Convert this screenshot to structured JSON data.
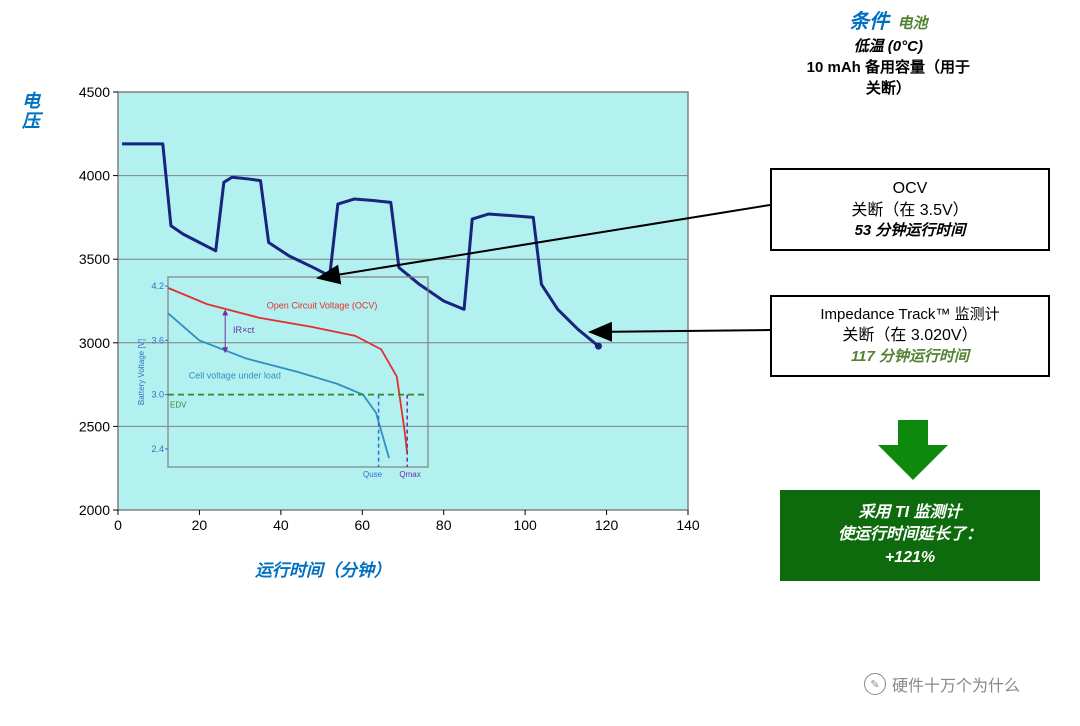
{
  "conditions": {
    "title": "条件",
    "sub": "电池",
    "line2": "低温 (0°C)",
    "line3a": "10 mAh 备用容量（用于",
    "line3b": "关断）"
  },
  "ylabel_a": "电",
  "ylabel_b": "压",
  "xlabel": "运行时间（分钟）",
  "main_chart": {
    "type": "line",
    "plot_bg": "#b3f0f0",
    "border_color": "#808080",
    "grid_color": "#808080",
    "line_color": "#1a237e",
    "line_width": 3,
    "xlim": [
      0,
      140
    ],
    "ylim": [
      2000,
      4500
    ],
    "xticks": [
      0,
      20,
      40,
      60,
      80,
      100,
      120,
      140
    ],
    "yticks": [
      2000,
      2500,
      3000,
      3500,
      4000,
      4500
    ],
    "yticks_grid": [
      2500,
      3000,
      3500,
      4000,
      4500
    ],
    "tick_fontsize": 14,
    "tick_color": "#000000",
    "series": [
      {
        "x": 1,
        "y": 4190
      },
      {
        "x": 11,
        "y": 4190
      },
      {
        "x": 13,
        "y": 3700
      },
      {
        "x": 16,
        "y": 3650
      },
      {
        "x": 20,
        "y": 3600
      },
      {
        "x": 24,
        "y": 3550
      },
      {
        "x": 26,
        "y": 3960
      },
      {
        "x": 28,
        "y": 3990
      },
      {
        "x": 32,
        "y": 3980
      },
      {
        "x": 35,
        "y": 3970
      },
      {
        "x": 37,
        "y": 3600
      },
      {
        "x": 42,
        "y": 3520
      },
      {
        "x": 48,
        "y": 3450
      },
      {
        "x": 52,
        "y": 3400
      },
      {
        "x": 54,
        "y": 3830
      },
      {
        "x": 58,
        "y": 3860
      },
      {
        "x": 63,
        "y": 3850
      },
      {
        "x": 67,
        "y": 3840
      },
      {
        "x": 69,
        "y": 3450
      },
      {
        "x": 74,
        "y": 3350
      },
      {
        "x": 80,
        "y": 3250
      },
      {
        "x": 85,
        "y": 3200
      },
      {
        "x": 87,
        "y": 3740
      },
      {
        "x": 91,
        "y": 3770
      },
      {
        "x": 97,
        "y": 3760
      },
      {
        "x": 102,
        "y": 3750
      },
      {
        "x": 104,
        "y": 3350
      },
      {
        "x": 108,
        "y": 3200
      },
      {
        "x": 113,
        "y": 3080
      },
      {
        "x": 118,
        "y": 2980
      }
    ]
  },
  "inset_chart": {
    "border_color": "#808080",
    "bg": "#b3f0f0",
    "ocv_color": "#e03030",
    "load_color": "#3090c0",
    "edv_color": "#2e8b2e",
    "dash_blue": "#3070d0",
    "dash_purple": "#7030a0",
    "ylabel": "Battery Voltage [V]",
    "yticks": [
      "2.4",
      "3.0",
      "3.6",
      "4.2"
    ],
    "ocv_label": "Open Circuit Voltage (OCV)",
    "irxct_label": "IR×ct",
    "load_label": "Cell voltage under load",
    "edv_label": "EDV",
    "quse_label": "Quse",
    "qmax_label": "Qmax"
  },
  "callout_ocv": {
    "line1": "OCV",
    "line2": "关断（在 3.5V）",
    "line3": "53 分钟运行时间"
  },
  "callout_it": {
    "line1": "Impedance Track™ 监测计",
    "line2": "关断（在 3.020V）",
    "line3": "117 分钟运行时间"
  },
  "result": {
    "bg": "#0d6b0d",
    "arrow_color": "#0d8a0d",
    "line1": "采用 TI 监测计",
    "line2": "使运行时间延长了：",
    "line3": "+121%"
  },
  "watermark": "硬件十万个为什么"
}
